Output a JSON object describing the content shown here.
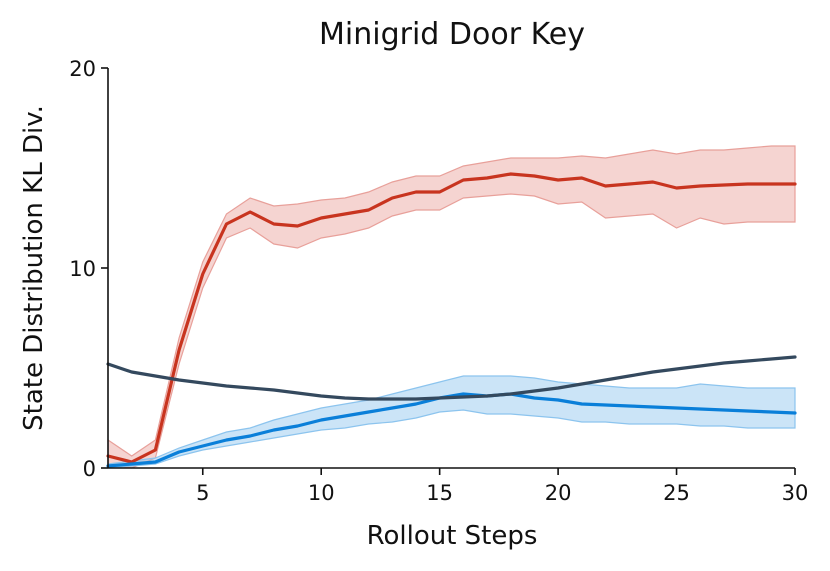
{
  "chart_data": {
    "type": "line",
    "title": "Minigrid Door Key",
    "xlabel": "Rollout Steps",
    "ylabel": "State Distribution KL Div.",
    "xlim": [
      1,
      30
    ],
    "ylim": [
      0,
      20
    ],
    "xticks": [
      5,
      10,
      15,
      20,
      25,
      30
    ],
    "yticks": [
      0,
      10,
      20
    ],
    "grid": false,
    "x": [
      1,
      2,
      3,
      4,
      5,
      6,
      7,
      8,
      9,
      10,
      11,
      12,
      13,
      14,
      15,
      16,
      17,
      18,
      19,
      20,
      21,
      22,
      23,
      24,
      25,
      26,
      27,
      28,
      29,
      30
    ],
    "series": [
      {
        "color": "#c8341f",
        "band_color": "#e8a09a",
        "values": [
          0.6,
          0.3,
          0.9,
          5.9,
          9.7,
          12.2,
          12.8,
          12.2,
          12.1,
          12.5,
          12.7,
          12.9,
          13.5,
          13.8,
          13.8,
          14.4,
          14.5,
          14.7,
          14.6,
          14.4,
          14.5,
          14.1,
          14.2,
          14.3,
          14.0,
          14.1,
          14.15,
          14.2,
          14.2,
          14.2
        ],
        "lower": [
          0.2,
          0.0,
          0.5,
          5.2,
          9.0,
          11.5,
          12.0,
          11.2,
          11.0,
          11.5,
          11.7,
          12.0,
          12.6,
          12.9,
          12.9,
          13.5,
          13.6,
          13.7,
          13.6,
          13.2,
          13.3,
          12.5,
          12.6,
          12.7,
          12.0,
          12.5,
          12.2,
          12.3,
          12.3,
          12.3
        ],
        "upper": [
          1.4,
          0.6,
          1.4,
          6.5,
          10.3,
          12.7,
          13.5,
          13.1,
          13.2,
          13.4,
          13.5,
          13.8,
          14.3,
          14.6,
          14.6,
          15.1,
          15.3,
          15.5,
          15.5,
          15.5,
          15.6,
          15.5,
          15.7,
          15.9,
          15.7,
          15.9,
          15.9,
          16.0,
          16.1,
          16.1
        ]
      },
      {
        "color": "#0a7fd9",
        "band_color": "#8cc4ee",
        "values": [
          0.1,
          0.2,
          0.3,
          0.8,
          1.1,
          1.4,
          1.6,
          1.9,
          2.1,
          2.4,
          2.6,
          2.8,
          3.0,
          3.2,
          3.5,
          3.7,
          3.6,
          3.7,
          3.5,
          3.4,
          3.2,
          3.15,
          3.1,
          3.05,
          3.0,
          2.95,
          2.9,
          2.85,
          2.8,
          2.75
        ],
        "lower": [
          0.0,
          0.1,
          0.2,
          0.6,
          0.9,
          1.1,
          1.3,
          1.5,
          1.7,
          1.9,
          2.0,
          2.2,
          2.3,
          2.5,
          2.8,
          2.9,
          2.7,
          2.7,
          2.6,
          2.5,
          2.3,
          2.3,
          2.2,
          2.2,
          2.2,
          2.1,
          2.1,
          2.0,
          2.0,
          2.0
        ],
        "upper": [
          0.2,
          0.35,
          0.5,
          1.0,
          1.4,
          1.8,
          2.0,
          2.4,
          2.7,
          3.0,
          3.2,
          3.4,
          3.7,
          4.0,
          4.3,
          4.6,
          4.6,
          4.6,
          4.5,
          4.3,
          4.2,
          4.1,
          4.0,
          4.0,
          4.0,
          4.2,
          4.1,
          4.0,
          4.0,
          4.0
        ]
      },
      {
        "color": "#34495e",
        "values": [
          5.2,
          4.8,
          4.6,
          4.4,
          4.25,
          4.1,
          4.0,
          3.9,
          3.75,
          3.6,
          3.5,
          3.45,
          3.45,
          3.45,
          3.5,
          3.55,
          3.6,
          3.7,
          3.85,
          4.0,
          4.2,
          4.4,
          4.6,
          4.8,
          4.95,
          5.1,
          5.25,
          5.35,
          5.45,
          5.55
        ]
      }
    ]
  }
}
